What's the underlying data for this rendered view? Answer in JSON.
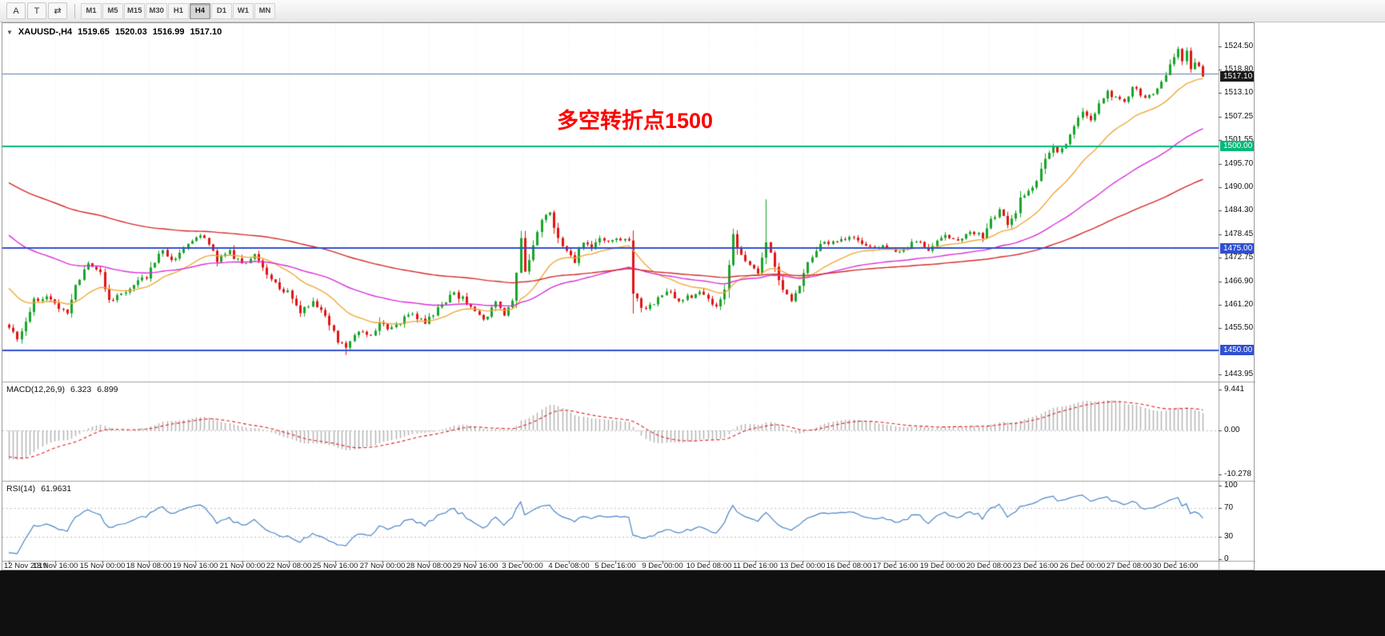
{
  "toolbar": {
    "tools": [
      {
        "name": "arrow-tool",
        "label": "A"
      },
      {
        "name": "text-tool",
        "label": "T"
      },
      {
        "name": "cycle-tool",
        "label": "⇄"
      }
    ],
    "timeframes": [
      {
        "label": "M1",
        "active": false
      },
      {
        "label": "M5",
        "active": false
      },
      {
        "label": "M15",
        "active": false
      },
      {
        "label": "M30",
        "active": false
      },
      {
        "label": "H1",
        "active": false
      },
      {
        "label": "H4",
        "active": true
      },
      {
        "label": "D1",
        "active": false
      },
      {
        "label": "W1",
        "active": false
      },
      {
        "label": "MN",
        "active": false
      }
    ]
  },
  "header": {
    "collapse_glyph": "▼",
    "symbol_period": "XAUUSD-,H4",
    "open": "1519.65",
    "high": "1520.03",
    "low": "1516.99",
    "close": "1517.10"
  },
  "annotation": {
    "text": "多空转折点1500",
    "color": "#ff0000"
  },
  "price_axis": {
    "ticks": [
      {
        "label": "1524.50",
        "price": 1524.5
      },
      {
        "label": "1518.80",
        "price": 1518.8
      },
      {
        "label": "1513.10",
        "price": 1513.1
      },
      {
        "label": "1507.25",
        "price": 1507.25
      },
      {
        "label": "1501.55",
        "price": 1501.55
      },
      {
        "label": "1495.70",
        "price": 1495.7
      },
      {
        "label": "1490.00",
        "price": 1490.0
      },
      {
        "label": "1484.30",
        "price": 1484.3
      },
      {
        "label": "1478.45",
        "price": 1478.45
      },
      {
        "label": "1472.75",
        "price": 1472.75
      },
      {
        "label": "1466.90",
        "price": 1466.9
      },
      {
        "label": "1461.20",
        "price": 1461.2
      },
      {
        "label": "1455.50",
        "price": 1455.5
      },
      {
        "label": "1443.95",
        "price": 1443.95
      }
    ],
    "badges": [
      {
        "label": "1517.10",
        "price": 1517.1,
        "bg": "#1a1a1a"
      },
      {
        "label": "1500.00",
        "price": 1500.0,
        "bg": "#00b87a"
      },
      {
        "label": "1475.00",
        "price": 1475.0,
        "bg": "#3050d0"
      },
      {
        "label": "1450.00",
        "price": 1450.0,
        "bg": "#3050d0"
      }
    ]
  },
  "time_axis": {
    "labels": [
      "12 Nov 2019",
      "13 Nov 16:00",
      "15 Nov 00:00",
      "18 Nov 08:00",
      "19 Nov 16:00",
      "21 Nov 00:00",
      "22 Nov 08:00",
      "25 Nov 16:00",
      "27 Nov 00:00",
      "28 Nov 08:00",
      "29 Nov 16:00",
      "3 Dec 00:00",
      "4 Dec 08:00",
      "5 Dec 16:00",
      "9 Dec 00:00",
      "10 Dec 08:00",
      "11 Dec 16:00",
      "13 Dec 00:00",
      "16 Dec 08:00",
      "17 Dec 16:00",
      "19 Dec 00:00",
      "20 Dec 08:00",
      "23 Dec 16:00",
      "26 Dec 00:00",
      "27 Dec 08:00",
      "30 Dec 16:00"
    ]
  },
  "macd": {
    "label": "MACD(12,26,9)",
    "value_main": "6.323",
    "value_signal": "6.899",
    "fast": 12,
    "slow": 26,
    "signal": 9,
    "axis_labels": [
      {
        "label": "9.441",
        "value": 9.441
      },
      {
        "label": "0.00",
        "value": 0
      },
      {
        "label": "-10.278",
        "value": -10.278
      }
    ],
    "range": [
      -10.278,
      9.441
    ],
    "histogram_color": "#b4b4b4",
    "signal_color": "#e02020"
  },
  "rsi": {
    "label": "RSI(14)",
    "period": 14,
    "value": "61.9631",
    "axis_labels": [
      {
        "label": "100",
        "value": 100
      },
      {
        "label": "70",
        "value": 70
      },
      {
        "label": "30",
        "value": 30
      },
      {
        "label": "0",
        "value": 0
      }
    ],
    "levels": [
      70,
      30
    ],
    "line_color": "#4a86c8"
  },
  "chart_data": {
    "type": "candlestick",
    "symbol": "XAUUSD",
    "timeframe": "H4",
    "bars": 288,
    "price_range_visible": [
      1442.3,
      1530.2
    ],
    "candle_up_color": "#18a42a",
    "candle_down_color": "#e01414",
    "close_path_anchors": [
      [
        0,
        1456
      ],
      [
        2,
        1452
      ],
      [
        4,
        1457
      ],
      [
        6,
        1462
      ],
      [
        9,
        1463
      ],
      [
        11,
        1461
      ],
      [
        14,
        1459
      ],
      [
        16,
        1466
      ],
      [
        19,
        1471
      ],
      [
        22,
        1469
      ],
      [
        24,
        1462
      ],
      [
        27,
        1464
      ],
      [
        30,
        1466
      ],
      [
        33,
        1468
      ],
      [
        35,
        1472
      ],
      [
        37,
        1474
      ],
      [
        40,
        1472
      ],
      [
        42,
        1475
      ],
      [
        44,
        1477
      ],
      [
        47,
        1478
      ],
      [
        50,
        1472
      ],
      [
        53,
        1474
      ],
      [
        56,
        1471
      ],
      [
        59,
        1473
      ],
      [
        61,
        1470
      ],
      [
        63,
        1467
      ],
      [
        67,
        1464
      ],
      [
        70,
        1459
      ],
      [
        73,
        1462
      ],
      [
        76,
        1458
      ],
      [
        78,
        1455
      ],
      [
        79,
        1452
      ],
      [
        81,
        1450.5
      ],
      [
        84,
        1455
      ],
      [
        87,
        1453
      ],
      [
        89,
        1457
      ],
      [
        92,
        1455
      ],
      [
        96,
        1459
      ],
      [
        100,
        1457
      ],
      [
        103,
        1460
      ],
      [
        107,
        1464
      ],
      [
        111,
        1461
      ],
      [
        114,
        1457
      ],
      [
        117,
        1462
      ],
      [
        119,
        1459
      ],
      [
        121,
        1462
      ],
      [
        123,
        1477
      ],
      [
        124,
        1469
      ],
      [
        126,
        1476
      ],
      [
        128,
        1482
      ],
      [
        130,
        1483.5
      ],
      [
        132,
        1477
      ],
      [
        134,
        1474
      ],
      [
        136,
        1472
      ],
      [
        138,
        1477
      ],
      [
        140,
        1475
      ],
      [
        142,
        1477
      ],
      [
        144,
        1476.5
      ],
      [
        147,
        1477
      ],
      [
        149,
        1476.5
      ],
      [
        150,
        1464.5
      ],
      [
        152,
        1460
      ],
      [
        155,
        1461
      ],
      [
        158,
        1465
      ],
      [
        161,
        1462
      ],
      [
        166,
        1464
      ],
      [
        168,
        1462
      ],
      [
        170,
        1461
      ],
      [
        172,
        1465
      ],
      [
        174,
        1478
      ],
      [
        176,
        1473
      ],
      [
        178,
        1471
      ],
      [
        180,
        1469
      ],
      [
        182,
        1477
      ],
      [
        184,
        1470
      ],
      [
        186,
        1465
      ],
      [
        188,
        1462
      ],
      [
        190,
        1466
      ],
      [
        192,
        1471
      ],
      [
        194,
        1474
      ],
      [
        196,
        1477
      ],
      [
        199,
        1476
      ],
      [
        202,
        1478
      ],
      [
        206,
        1475
      ],
      [
        210,
        1476
      ],
      [
        214,
        1474
      ],
      [
        218,
        1477
      ],
      [
        221,
        1475
      ],
      [
        224,
        1478
      ],
      [
        228,
        1477
      ],
      [
        232,
        1479
      ],
      [
        234,
        1478
      ],
      [
        236,
        1482
      ],
      [
        238,
        1484
      ],
      [
        240,
        1481
      ],
      [
        242,
        1483
      ],
      [
        243,
        1487
      ],
      [
        245,
        1489
      ],
      [
        247,
        1492
      ],
      [
        249,
        1497
      ],
      [
        251,
        1500
      ],
      [
        252,
        1499
      ],
      [
        254,
        1501
      ],
      [
        256,
        1505
      ],
      [
        258,
        1509
      ],
      [
        260,
        1507
      ],
      [
        262,
        1510
      ],
      [
        264,
        1513
      ],
      [
        266,
        1512
      ],
      [
        268,
        1511
      ],
      [
        270,
        1514
      ],
      [
        272,
        1513
      ],
      [
        274,
        1512
      ],
      [
        276,
        1514
      ],
      [
        278,
        1518
      ],
      [
        280,
        1522
      ],
      [
        281,
        1524
      ],
      [
        282,
        1521
      ],
      [
        283,
        1523
      ],
      [
        284,
        1519
      ],
      [
        285,
        1520.5
      ],
      [
        286,
        1519.65
      ],
      [
        287,
        1517.1
      ]
    ],
    "prehistory_anchors": [
      [
        -150,
        1528
      ],
      [
        -110,
        1510
      ],
      [
        -75,
        1498
      ],
      [
        -45,
        1492
      ],
      [
        -25,
        1482
      ],
      [
        -12,
        1470
      ],
      [
        -4,
        1458
      ],
      [
        -1,
        1456
      ]
    ],
    "high_overrides": {
      "182": 1487.0,
      "281": 1524.5
    },
    "low_overrides": {
      "81": 1448.8
    },
    "moving_averages": [
      {
        "period": 20,
        "color": "#efa93a"
      },
      {
        "period": 60,
        "color": "#d92ed9"
      },
      {
        "period": 130,
        "color": "#d42a2a"
      }
    ],
    "hlines": [
      {
        "price": 1517.8,
        "color": "#5a7ca6",
        "width": 1
      },
      {
        "price": 1500.0,
        "color": "#00b87a",
        "width": 2
      },
      {
        "price": 1475.0,
        "color": "#3050d0",
        "width": 2
      },
      {
        "price": 1450.0,
        "color": "#3050d0",
        "width": 2
      }
    ]
  }
}
